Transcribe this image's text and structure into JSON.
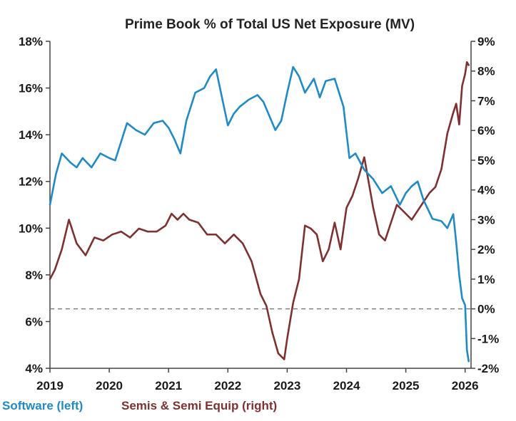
{
  "colors": {
    "software": "#1f8ac8",
    "semis": "#7f3030",
    "zero_line": "#777777",
    "axis": "#444444",
    "text": "#1a1a1a"
  },
  "chart_data": {
    "type": "line",
    "title": "Prime Book % of Total US Net Exposure (MV)",
    "left_axis": {
      "ylim": [
        4,
        18
      ],
      "ticks": [
        4,
        6,
        8,
        10,
        12,
        14,
        16,
        18
      ],
      "labels": [
        "4%",
        "6%",
        "8%",
        "10%",
        "12%",
        "14%",
        "16%",
        "18%"
      ]
    },
    "right_axis": {
      "ylim": [
        -2,
        9
      ],
      "ticks": [
        -2,
        -1,
        0,
        1,
        2,
        3,
        4,
        5,
        6,
        7,
        8,
        9
      ],
      "labels": [
        "-2%",
        "-1%",
        "0%",
        "1%",
        "2%",
        "3%",
        "4%",
        "5%",
        "6%",
        "7%",
        "8%",
        "9%"
      ]
    },
    "x_axis": {
      "xlim": [
        2019,
        2026.1
      ],
      "ticks": [
        2019,
        2020,
        2021,
        2022,
        2023,
        2024,
        2025,
        2026
      ],
      "labels": [
        "2019",
        "2020",
        "2021",
        "2022",
        "2023",
        "2024",
        "2025",
        "2026"
      ]
    },
    "reference_line": {
      "axis": "right",
      "value": 0,
      "style": "dashed"
    },
    "legend": {
      "placement": "bottom-left",
      "entries": [
        "Software (left)",
        "Semis & Semi Equip (right)"
      ]
    },
    "series": [
      {
        "name": "Software (left)",
        "axis": "left",
        "x": [
          2019.0,
          2019.1,
          2019.2,
          2019.35,
          2019.45,
          2019.55,
          2019.7,
          2019.85,
          2020.0,
          2020.1,
          2020.2,
          2020.3,
          2020.45,
          2020.6,
          2020.75,
          2020.9,
          2021.0,
          2021.1,
          2021.2,
          2021.3,
          2021.45,
          2021.6,
          2021.7,
          2021.8,
          2021.9,
          2022.0,
          2022.1,
          2022.2,
          2022.35,
          2022.5,
          2022.6,
          2022.7,
          2022.8,
          2022.9,
          2023.0,
          2023.1,
          2023.2,
          2023.3,
          2023.45,
          2023.55,
          2023.65,
          2023.8,
          2023.95,
          2024.05,
          2024.15,
          2024.3,
          2024.45,
          2024.6,
          2024.75,
          2024.9,
          2025.0,
          2025.1,
          2025.2,
          2025.3,
          2025.45,
          2025.6,
          2025.7,
          2025.8,
          2025.85,
          2025.9,
          2025.95,
          2026.0,
          2026.03,
          2026.06
        ],
        "values": [
          11.0,
          12.3,
          13.2,
          12.8,
          12.6,
          13.0,
          12.6,
          13.2,
          13.0,
          12.9,
          13.7,
          14.5,
          14.2,
          14.0,
          14.5,
          14.6,
          14.3,
          13.8,
          13.2,
          14.6,
          15.8,
          16.0,
          16.5,
          16.8,
          15.6,
          14.4,
          14.9,
          15.2,
          15.5,
          15.7,
          15.4,
          14.8,
          14.2,
          14.6,
          15.8,
          16.9,
          16.5,
          15.8,
          16.4,
          15.6,
          16.3,
          16.4,
          15.2,
          13.0,
          13.2,
          12.5,
          12.1,
          11.5,
          11.8,
          11.0,
          11.5,
          11.8,
          12.0,
          11.2,
          10.4,
          10.3,
          10.0,
          10.6,
          9.4,
          8.0,
          7.0,
          6.7,
          4.8,
          4.3
        ]
      },
      {
        "name": "Semis & Semi Equip (right)",
        "axis": "right",
        "x": [
          2019.0,
          2019.08,
          2019.2,
          2019.32,
          2019.45,
          2019.6,
          2019.75,
          2019.9,
          2020.05,
          2020.2,
          2020.35,
          2020.5,
          2020.65,
          2020.8,
          2020.95,
          2021.05,
          2021.15,
          2021.25,
          2021.35,
          2021.5,
          2021.65,
          2021.8,
          2021.95,
          2022.1,
          2022.25,
          2022.4,
          2022.55,
          2022.65,
          2022.75,
          2022.85,
          2022.95,
          2023.0,
          2023.1,
          2023.2,
          2023.3,
          2023.4,
          2023.5,
          2023.6,
          2023.7,
          2023.8,
          2023.9,
          2024.0,
          2024.1,
          2024.2,
          2024.3,
          2024.45,
          2024.55,
          2024.65,
          2024.75,
          2024.85,
          2025.0,
          2025.1,
          2025.2,
          2025.3,
          2025.4,
          2025.5,
          2025.6,
          2025.7,
          2025.8,
          2025.85,
          2025.9,
          2025.95,
          2026.0,
          2026.03,
          2026.06
        ],
        "values": [
          1.0,
          1.3,
          2.0,
          3.0,
          2.2,
          1.8,
          2.4,
          2.3,
          2.5,
          2.6,
          2.4,
          2.7,
          2.6,
          2.6,
          2.8,
          3.2,
          3.0,
          3.2,
          3.0,
          2.9,
          2.5,
          2.5,
          2.2,
          2.5,
          2.2,
          1.6,
          0.5,
          0.1,
          -0.8,
          -1.5,
          -1.7,
          -1.0,
          0.2,
          1.0,
          2.8,
          2.7,
          2.5,
          1.6,
          2.0,
          2.9,
          2.0,
          3.4,
          3.8,
          4.4,
          5.1,
          3.4,
          2.5,
          2.3,
          2.9,
          3.5,
          3.2,
          3.0,
          3.3,
          3.6,
          3.9,
          4.1,
          4.7,
          5.9,
          6.6,
          6.9,
          6.2,
          7.5,
          7.9,
          8.3,
          8.2
        ]
      }
    ]
  }
}
